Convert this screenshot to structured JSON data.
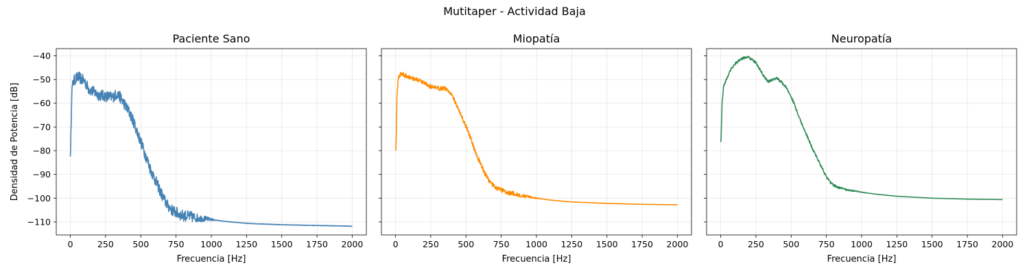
{
  "figure": {
    "suptitle": "Mutitaper - Actividad Baja"
  },
  "chart_data": [
    {
      "type": "line",
      "title": "Paciente Sano",
      "xlabel": "Frecuencia [Hz]",
      "ylabel": "Densidad de Potencia [dB]",
      "xlim": [
        -100,
        2100
      ],
      "ylim": [
        -115.5,
        -37
      ],
      "xticks": [
        0,
        250,
        500,
        750,
        1000,
        1250,
        1500,
        1750,
        2000
      ],
      "yticks": [
        -110,
        -100,
        -90,
        -80,
        -70,
        -60,
        -50,
        -40
      ],
      "grid": true,
      "noise": 2.4,
      "series": [
        {
          "color": "#4682b4",
          "x": [
            0,
            2,
            5,
            10,
            20,
            40,
            60,
            80,
            100,
            130,
            160,
            200,
            250,
            300,
            330,
            360,
            390,
            420,
            450,
            480,
            510,
            540,
            570,
            600,
            630,
            660,
            690,
            720,
            750,
            780,
            800,
            850,
            900,
            1000,
            1100,
            1250,
            1500,
            1750,
            2000
          ],
          "y": [
            -80.5,
            -81,
            -70,
            -55,
            -51,
            -49.5,
            -49,
            -50,
            -50.5,
            -54,
            -55,
            -56.5,
            -57,
            -57.5,
            -56,
            -58,
            -61,
            -64,
            -68,
            -73,
            -78,
            -83,
            -88,
            -92,
            -96,
            -100,
            -103,
            -105,
            -106,
            -107,
            -107.3,
            -107.8,
            -108.3,
            -109,
            -109.8,
            -110.6,
            -111.2,
            -111.5,
            -111.8
          ]
        }
      ]
    },
    {
      "type": "line",
      "title": "Miopatía",
      "xlabel": "Frecuencia [Hz]",
      "ylabel": "",
      "xlim": [
        -100,
        2100
      ],
      "ylim": [
        -115.5,
        -37
      ],
      "xticks": [
        0,
        250,
        500,
        750,
        1000,
        1250,
        1500,
        1750,
        2000
      ],
      "yticks": [
        -110,
        -100,
        -90,
        -80,
        -70,
        -60,
        -50,
        -40
      ],
      "grid": true,
      "noise": 0.9,
      "series": [
        {
          "color": "#ff8c00",
          "x": [
            0,
            2,
            5,
            10,
            20,
            40,
            60,
            80,
            100,
            150,
            200,
            250,
            300,
            330,
            360,
            390,
            420,
            450,
            480,
            510,
            540,
            570,
            600,
            630,
            660,
            690,
            720,
            750,
            780,
            800,
            850,
            900,
            1000,
            1100,
            1250,
            1500,
            1750,
            2000
          ],
          "y": [
            -79,
            -79.5,
            -74,
            -58,
            -49,
            -47.5,
            -48,
            -48.5,
            -49,
            -50,
            -51.5,
            -53,
            -53.8,
            -53.5,
            -54,
            -55.5,
            -59,
            -63,
            -67,
            -71,
            -76,
            -81,
            -85,
            -89,
            -92.5,
            -94.5,
            -95.8,
            -96.5,
            -97.2,
            -97.6,
            -98.3,
            -99,
            -100,
            -100.8,
            -101.6,
            -102.2,
            -102.6,
            -102.8
          ]
        }
      ]
    },
    {
      "type": "line",
      "title": "Neuropatía",
      "xlabel": "Frecuencia [Hz]",
      "ylabel": "",
      "xlim": [
        -100,
        2100
      ],
      "ylim": [
        -115.5,
        -37
      ],
      "xticks": [
        0,
        250,
        500,
        750,
        1000,
        1250,
        1500,
        1750,
        2000
      ],
      "yticks": [
        -110,
        -100,
        -90,
        -80,
        -70,
        -60,
        -50,
        -40
      ],
      "grid": true,
      "noise": 0.5,
      "series": [
        {
          "color": "#2e8b57",
          "x": [
            0,
            2,
            5,
            10,
            20,
            40,
            70,
            100,
            130,
            160,
            190,
            220,
            250,
            280,
            310,
            340,
            370,
            400,
            430,
            460,
            490,
            520,
            550,
            600,
            650,
            700,
            750,
            780,
            800,
            850,
            900,
            1000,
            1100,
            1250,
            1500,
            1750,
            2000
          ],
          "y": [
            -75.5,
            -76.5,
            -70,
            -60,
            -53,
            -50,
            -46,
            -43.5,
            -42,
            -41,
            -40.5,
            -41.5,
            -43,
            -46,
            -49,
            -51,
            -50,
            -49.5,
            -51,
            -53,
            -56,
            -60,
            -65,
            -72,
            -79,
            -85,
            -91,
            -93.5,
            -94.5,
            -95.8,
            -96.5,
            -97.5,
            -98.3,
            -99.2,
            -100,
            -100.4,
            -100.6
          ]
        }
      ]
    }
  ]
}
